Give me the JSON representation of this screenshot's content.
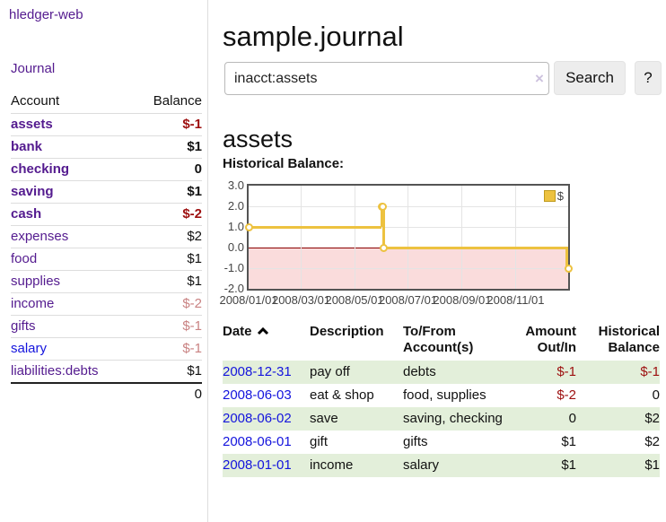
{
  "app": {
    "title": "hledger-web"
  },
  "sidebar": {
    "journal_link": "Journal",
    "table": {
      "account_header": "Account",
      "balance_header": "Balance",
      "rows": [
        {
          "account": "assets",
          "balance": "$-1"
        },
        {
          "account": "bank",
          "balance": "$1"
        },
        {
          "account": "checking",
          "balance": "0"
        },
        {
          "account": "saving",
          "balance": "$1"
        },
        {
          "account": "cash",
          "balance": "$-2"
        },
        {
          "account": "expenses",
          "balance": "$2"
        },
        {
          "account": "food",
          "balance": "$1"
        },
        {
          "account": "supplies",
          "balance": "$1"
        },
        {
          "account": "income",
          "balance": "$-2"
        },
        {
          "account": "gifts",
          "balance": "$-1"
        },
        {
          "account": "salary",
          "balance": "$-1"
        },
        {
          "account": "liabilities:debts",
          "balance": "$1"
        }
      ],
      "total": "0"
    }
  },
  "main": {
    "title": "sample.journal",
    "search": {
      "value": "inacct:assets",
      "clear_icon": "×",
      "button": "Search",
      "help_button": "?"
    },
    "account_heading": "assets",
    "chart_label": "Historical Balance:"
  },
  "chart_data": {
    "type": "line",
    "subtype": "step",
    "title": "Historical Balance:",
    "x_range": [
      "2008-01-01",
      "2008-12-31"
    ],
    "y_range": [
      -2,
      3
    ],
    "y_ticks": [
      3,
      2,
      1,
      0,
      -1,
      -2
    ],
    "y_tick_labels": [
      "3.0",
      "2.0",
      "1.0",
      "0.0",
      "-1.0",
      "-2.0"
    ],
    "x_ticks": [
      "2008/01/01",
      "2008/03/01",
      "2008/05/01",
      "2008/07/01",
      "2008/09/01",
      "2008/11/01"
    ],
    "grid": true,
    "legend_position": "top-right",
    "series": [
      {
        "name": "$",
        "color": "#edc240",
        "points": [
          [
            "2008-01-01",
            1
          ],
          [
            "2008-06-01",
            2
          ],
          [
            "2008-06-02",
            2
          ],
          [
            "2008-06-03",
            0
          ],
          [
            "2008-12-31",
            -1
          ]
        ]
      }
    ],
    "zero_line_color": "#8b0000",
    "negative_region_fill": "#fadcdc"
  },
  "register": {
    "headers": {
      "date": "Date",
      "sort_icon": "chevron-up",
      "description": "Description",
      "account": "To/From Account(s)",
      "amount": "Amount Out/In",
      "balance": "Historical Balance"
    },
    "rows": [
      {
        "date": "2008-12-31",
        "description": "pay off",
        "accounts": "debts",
        "amount": "$-1",
        "balance": "$-1"
      },
      {
        "date": "2008-06-03",
        "description": "eat & shop",
        "accounts": "food, supplies",
        "amount": "$-2",
        "balance": "0"
      },
      {
        "date": "2008-06-02",
        "description": "save",
        "accounts": "saving, checking",
        "amount": "0",
        "balance": "$2"
      },
      {
        "date": "2008-06-01",
        "description": "gift",
        "accounts": "gifts",
        "amount": "$1",
        "balance": "$2"
      },
      {
        "date": "2008-01-01",
        "description": "income",
        "accounts": "salary",
        "amount": "$1",
        "balance": "$1"
      }
    ]
  }
}
